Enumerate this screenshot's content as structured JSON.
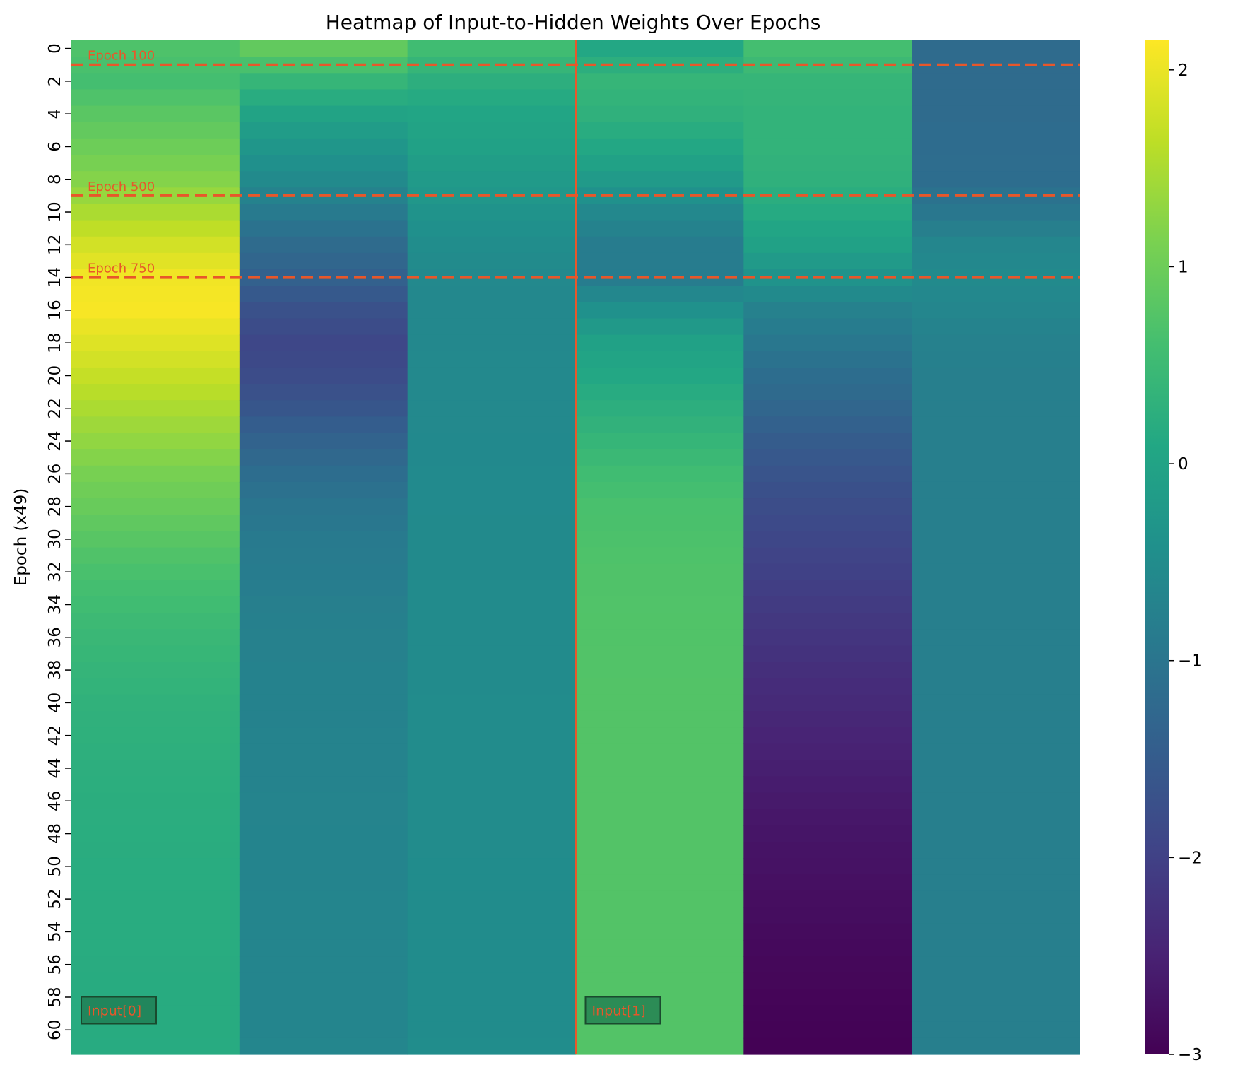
{
  "chart_data": {
    "type": "heatmap",
    "title": "Heatmap of Input-to-Hidden Weights Over Epochs",
    "xlabel": "",
    "ylabel": "Epoch (x49)",
    "colormap": "viridis",
    "vmin": -3.0,
    "vmax": 2.15,
    "colorbar_ticks": [
      2,
      1,
      0,
      -1,
      -2,
      -3
    ],
    "colorbar_tick_labels": [
      "2",
      "1",
      "0",
      "−1",
      "−2",
      "−3"
    ],
    "y_tick_labels": [
      "0",
      "2",
      "4",
      "6",
      "8",
      "10",
      "12",
      "14",
      "16",
      "18",
      "20",
      "22",
      "24",
      "26",
      "28",
      "30",
      "32",
      "34",
      "36",
      "38",
      "40",
      "42",
      "44",
      "46",
      "48",
      "50",
      "52",
      "54",
      "56",
      "58",
      "60"
    ],
    "n_rows": 62,
    "n_cols": 6,
    "column_keyframes": [
      [
        [
          0,
          0.7
        ],
        [
          2,
          0.6
        ],
        [
          4,
          0.82
        ],
        [
          6,
          1.0
        ],
        [
          8,
          1.2
        ],
        [
          10,
          1.5
        ],
        [
          12,
          1.8
        ],
        [
          14,
          2.05
        ],
        [
          16,
          2.1
        ],
        [
          18,
          1.9
        ],
        [
          20,
          1.7
        ],
        [
          22,
          1.5
        ],
        [
          24,
          1.3
        ],
        [
          26,
          1.1
        ],
        [
          28,
          0.95
        ],
        [
          30,
          0.8
        ],
        [
          32,
          0.65
        ],
        [
          34,
          0.55
        ],
        [
          36,
          0.45
        ],
        [
          38,
          0.38
        ],
        [
          40,
          0.32
        ],
        [
          44,
          0.25
        ],
        [
          50,
          0.2
        ],
        [
          61,
          0.18
        ]
      ],
      [
        [
          0,
          0.9
        ],
        [
          2,
          0.4
        ],
        [
          4,
          0.0
        ],
        [
          6,
          -0.3
        ],
        [
          8,
          -0.55
        ],
        [
          10,
          -0.9
        ],
        [
          12,
          -1.2
        ],
        [
          14,
          -1.4
        ],
        [
          16,
          -1.7
        ],
        [
          18,
          -1.9
        ],
        [
          20,
          -1.8
        ],
        [
          22,
          -1.6
        ],
        [
          24,
          -1.35
        ],
        [
          26,
          -1.15
        ],
        [
          28,
          -1.0
        ],
        [
          30,
          -0.9
        ],
        [
          32,
          -0.85
        ],
        [
          34,
          -0.8
        ],
        [
          36,
          -0.75
        ],
        [
          40,
          -0.72
        ],
        [
          48,
          -0.68
        ],
        [
          61,
          -0.65
        ]
      ],
      [
        [
          0,
          0.55
        ],
        [
          2,
          0.25
        ],
        [
          4,
          0.05
        ],
        [
          6,
          -0.05
        ],
        [
          8,
          -0.2
        ],
        [
          10,
          -0.35
        ],
        [
          12,
          -0.5
        ],
        [
          14,
          -0.58
        ],
        [
          16,
          -0.6
        ],
        [
          20,
          -0.58
        ],
        [
          30,
          -0.55
        ],
        [
          40,
          -0.52
        ],
        [
          61,
          -0.5
        ]
      ],
      [
        [
          0,
          0.1
        ],
        [
          2,
          0.4
        ],
        [
          4,
          0.3
        ],
        [
          6,
          0.1
        ],
        [
          8,
          -0.2
        ],
        [
          10,
          -0.6
        ],
        [
          12,
          -0.85
        ],
        [
          14,
          -0.85
        ],
        [
          16,
          -0.4
        ],
        [
          18,
          -0.05
        ],
        [
          20,
          0.1
        ],
        [
          22,
          0.25
        ],
        [
          24,
          0.4
        ],
        [
          26,
          0.55
        ],
        [
          28,
          0.65
        ],
        [
          32,
          0.72
        ],
        [
          40,
          0.75
        ],
        [
          61,
          0.75
        ]
      ],
      [
        [
          0,
          0.6
        ],
        [
          2,
          0.4
        ],
        [
          4,
          0.35
        ],
        [
          6,
          0.35
        ],
        [
          8,
          0.3
        ],
        [
          10,
          0.15
        ],
        [
          12,
          -0.05
        ],
        [
          14,
          -0.35
        ],
        [
          16,
          -0.75
        ],
        [
          18,
          -0.95
        ],
        [
          20,
          -1.15
        ],
        [
          22,
          -1.3
        ],
        [
          24,
          -1.5
        ],
        [
          26,
          -1.65
        ],
        [
          28,
          -1.78
        ],
        [
          30,
          -1.9
        ],
        [
          32,
          -2.0
        ],
        [
          34,
          -2.1
        ],
        [
          36,
          -2.2
        ],
        [
          40,
          -2.38
        ],
        [
          44,
          -2.55
        ],
        [
          48,
          -2.7
        ],
        [
          52,
          -2.8
        ],
        [
          56,
          -2.9
        ],
        [
          61,
          -2.98
        ]
      ],
      [
        [
          0,
          -1.2
        ],
        [
          4,
          -1.2
        ],
        [
          8,
          -1.15
        ],
        [
          10,
          -0.95
        ],
        [
          12,
          -0.65
        ],
        [
          14,
          -0.55
        ],
        [
          16,
          -0.65
        ],
        [
          18,
          -0.75
        ],
        [
          20,
          -0.8
        ],
        [
          30,
          -0.8
        ],
        [
          61,
          -0.8
        ]
      ]
    ],
    "hlines": [
      {
        "y": 1.5,
        "label": "Epoch 100"
      },
      {
        "y": 9.5,
        "label": "Epoch 500"
      },
      {
        "y": 14.5,
        "label": "Epoch 750"
      }
    ],
    "vline": {
      "x": 3
    },
    "line_color": "#e8572a",
    "box_labels": [
      "Input[0]",
      "Input[1]"
    ],
    "box_fill": "#1f7a50"
  }
}
